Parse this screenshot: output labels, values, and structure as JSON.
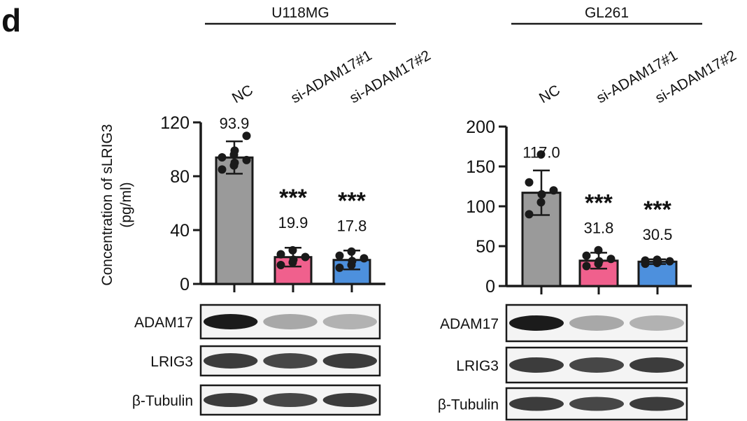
{
  "panel_label": "d",
  "ylabel_line1": "Concentration of sLRIG3",
  "ylabel_line2": "(pg/ml)",
  "colors": {
    "nc": "#9a9a9a",
    "si1": "#f0608d",
    "si2": "#4d90dd",
    "outline": "#1a1a1a"
  },
  "chart_data": [
    {
      "type": "bar",
      "title": "U118MG",
      "categories": [
        "NC",
        "si-ADAM17#1",
        "si-ADAM17#2"
      ],
      "values": [
        93.9,
        19.9,
        17.8
      ],
      "value_labels": [
        "93.9",
        "19.9",
        "17.8"
      ],
      "errors": [
        12,
        7,
        7
      ],
      "significance": [
        "",
        "***",
        "***"
      ],
      "points": [
        [
          85,
          88,
          90,
          92,
          94,
          96,
          99,
          110
        ],
        [
          14,
          16,
          18,
          20,
          22,
          25
        ],
        [
          12,
          14,
          17,
          19,
          21,
          24
        ]
      ],
      "ylim": [
        0,
        120
      ],
      "yticks": [
        "0",
        "40",
        "80",
        "120"
      ],
      "ylabel": "Concentration of sLRIG3 (pg/ml)",
      "blots": [
        "ADAM17",
        "LRIG3",
        "β-Tubulin"
      ]
    },
    {
      "type": "bar",
      "title": "GL261",
      "categories": [
        "NC",
        "si-ADAM17#1",
        "si-ADAM17#2"
      ],
      "values": [
        117.0,
        31.8,
        30.5
      ],
      "value_labels": [
        "117.0",
        "31.8",
        "30.5"
      ],
      "errors": [
        28,
        10,
        3
      ],
      "significance": [
        "",
        "***",
        "***"
      ],
      "points": [
        [
          90,
          105,
          115,
          120,
          130,
          165
        ],
        [
          25,
          28,
          31,
          34,
          38,
          45
        ],
        [
          28,
          29,
          30,
          31,
          32,
          33
        ]
      ],
      "ylim": [
        0,
        200
      ],
      "yticks": [
        "0",
        "50",
        "100",
        "150",
        "200"
      ],
      "ylabel": "",
      "blots": [
        "ADAM17",
        "LRIG3",
        "β-Tubulin"
      ]
    }
  ]
}
